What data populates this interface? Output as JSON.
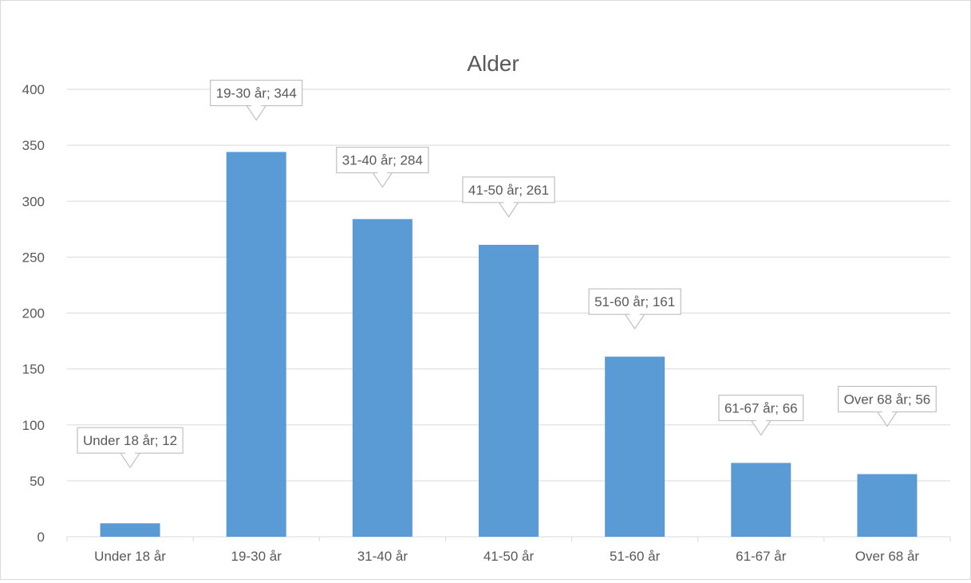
{
  "chart_data": {
    "type": "bar",
    "title": "Alder",
    "categories": [
      "Under 18 år",
      "19-30 år",
      "31-40 år",
      "41-50 år",
      "51-60 år",
      "61-67 år",
      "Over 68 år"
    ],
    "values": [
      12,
      344,
      284,
      261,
      161,
      66,
      56
    ],
    "data_labels": [
      "Under 18 år; 12",
      "19-30 år; 344",
      "31-40 år; 284",
      "41-50 år; 261",
      "51-60 år; 161",
      "61-67 år; 66",
      "Over 68 år; 56"
    ],
    "label_offsets": [
      70,
      40,
      40,
      35,
      35,
      35,
      60
    ],
    "y_ticks": [
      "0",
      "50",
      "100",
      "150",
      "200",
      "250",
      "300",
      "350",
      "400"
    ],
    "ylim": [
      0,
      400
    ],
    "xlabel": "",
    "ylabel": "",
    "grid": true,
    "legend": "none",
    "colors": {
      "bar": "#5b9bd5",
      "grid": "#d9d9d9",
      "text": "#595959",
      "label_border": "#bfbfbf"
    }
  }
}
